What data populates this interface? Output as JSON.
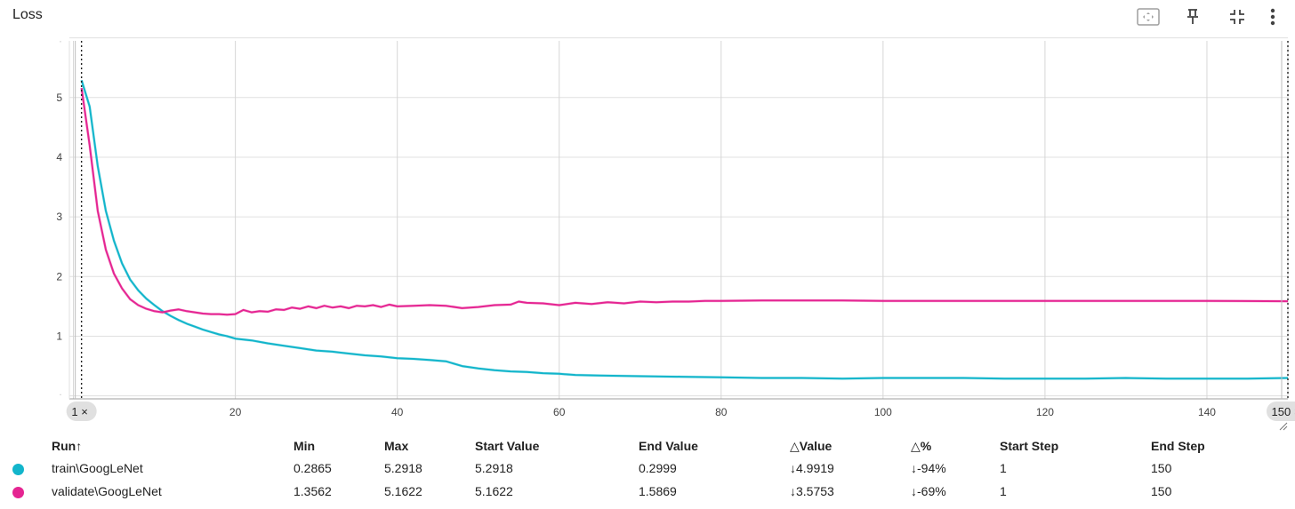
{
  "card": {
    "title": "Loss",
    "icons": [
      "fit-domain-icon",
      "pin-icon",
      "collapse-icon",
      "more-vert-icon"
    ]
  },
  "chart_data": {
    "type": "line",
    "title": "Loss",
    "xlim": [
      -0.5,
      150
    ],
    "ylim": [
      -0.05,
      5.95
    ],
    "x_ticks": [
      0,
      20,
      40,
      60,
      80,
      100,
      120,
      140
    ],
    "y_ticks": [
      0,
      1,
      2,
      3,
      4,
      5,
      6
    ],
    "y_tick_labels": [
      "",
      "1",
      "2",
      "3",
      "4",
      "5",
      ""
    ],
    "grid": true,
    "step_range": [
      1,
      150
    ],
    "range_handles": [
      "1",
      "150"
    ],
    "series": [
      {
        "name": "train\\GoogLeNet",
        "color": "#12b5cb",
        "points": [
          [
            1,
            5.29
          ],
          [
            2,
            4.85
          ],
          [
            3,
            3.85
          ],
          [
            4,
            3.1
          ],
          [
            5,
            2.6
          ],
          [
            6,
            2.22
          ],
          [
            7,
            1.95
          ],
          [
            8,
            1.77
          ],
          [
            9,
            1.63
          ],
          [
            10,
            1.52
          ],
          [
            11,
            1.42
          ],
          [
            12,
            1.34
          ],
          [
            13,
            1.27
          ],
          [
            14,
            1.21
          ],
          [
            15,
            1.16
          ],
          [
            16,
            1.11
          ],
          [
            17,
            1.07
          ],
          [
            18,
            1.03
          ],
          [
            19,
            1.0
          ],
          [
            20,
            0.96
          ],
          [
            22,
            0.93
          ],
          [
            24,
            0.88
          ],
          [
            26,
            0.84
          ],
          [
            28,
            0.8
          ],
          [
            30,
            0.76
          ],
          [
            32,
            0.74
          ],
          [
            34,
            0.71
          ],
          [
            36,
            0.68
          ],
          [
            38,
            0.66
          ],
          [
            40,
            0.63
          ],
          [
            42,
            0.62
          ],
          [
            44,
            0.6
          ],
          [
            46,
            0.58
          ],
          [
            48,
            0.5
          ],
          [
            50,
            0.46
          ],
          [
            52,
            0.43
          ],
          [
            54,
            0.41
          ],
          [
            56,
            0.4
          ],
          [
            58,
            0.38
          ],
          [
            60,
            0.37
          ],
          [
            62,
            0.35
          ],
          [
            65,
            0.34
          ],
          [
            70,
            0.33
          ],
          [
            75,
            0.32
          ],
          [
            80,
            0.31
          ],
          [
            85,
            0.3
          ],
          [
            90,
            0.3
          ],
          [
            95,
            0.29
          ],
          [
            100,
            0.3
          ],
          [
            105,
            0.3
          ],
          [
            110,
            0.3
          ],
          [
            115,
            0.29
          ],
          [
            120,
            0.29
          ],
          [
            125,
            0.29
          ],
          [
            130,
            0.3
          ],
          [
            135,
            0.29
          ],
          [
            140,
            0.29
          ],
          [
            145,
            0.29
          ],
          [
            150,
            0.2999
          ]
        ]
      },
      {
        "name": "validate\\GoogLeNet",
        "color": "#e52592",
        "points": [
          [
            1,
            5.16
          ],
          [
            2,
            4.2
          ],
          [
            3,
            3.1
          ],
          [
            4,
            2.45
          ],
          [
            5,
            2.05
          ],
          [
            6,
            1.8
          ],
          [
            7,
            1.62
          ],
          [
            8,
            1.52
          ],
          [
            9,
            1.46
          ],
          [
            10,
            1.42
          ],
          [
            11,
            1.4
          ],
          [
            12,
            1.43
          ],
          [
            13,
            1.45
          ],
          [
            14,
            1.42
          ],
          [
            15,
            1.4
          ],
          [
            16,
            1.38
          ],
          [
            17,
            1.37
          ],
          [
            18,
            1.37
          ],
          [
            19,
            1.36
          ],
          [
            20,
            1.37
          ],
          [
            21,
            1.44
          ],
          [
            22,
            1.4
          ],
          [
            23,
            1.42
          ],
          [
            24,
            1.41
          ],
          [
            25,
            1.45
          ],
          [
            26,
            1.44
          ],
          [
            27,
            1.48
          ],
          [
            28,
            1.46
          ],
          [
            29,
            1.5
          ],
          [
            30,
            1.47
          ],
          [
            31,
            1.51
          ],
          [
            32,
            1.48
          ],
          [
            33,
            1.5
          ],
          [
            34,
            1.47
          ],
          [
            35,
            1.51
          ],
          [
            36,
            1.5
          ],
          [
            37,
            1.52
          ],
          [
            38,
            1.49
          ],
          [
            39,
            1.53
          ],
          [
            40,
            1.5
          ],
          [
            42,
            1.51
          ],
          [
            44,
            1.52
          ],
          [
            46,
            1.51
          ],
          [
            48,
            1.47
          ],
          [
            50,
            1.49
          ],
          [
            52,
            1.52
          ],
          [
            54,
            1.53
          ],
          [
            55,
            1.58
          ],
          [
            56,
            1.56
          ],
          [
            58,
            1.55
          ],
          [
            60,
            1.52
          ],
          [
            62,
            1.56
          ],
          [
            64,
            1.54
          ],
          [
            66,
            1.57
          ],
          [
            68,
            1.55
          ],
          [
            70,
            1.58
          ],
          [
            72,
            1.57
          ],
          [
            74,
            1.58
          ],
          [
            76,
            1.58
          ],
          [
            78,
            1.59
          ],
          [
            80,
            1.59
          ],
          [
            85,
            1.6
          ],
          [
            90,
            1.6
          ],
          [
            95,
            1.6
          ],
          [
            100,
            1.59
          ],
          [
            110,
            1.59
          ],
          [
            120,
            1.59
          ],
          [
            130,
            1.59
          ],
          [
            140,
            1.59
          ],
          [
            150,
            1.5869
          ]
        ]
      }
    ]
  },
  "table": {
    "headers": {
      "run": "Run",
      "run_sort": "↑",
      "min": "Min",
      "max": "Max",
      "start_value": "Start Value",
      "end_value": "End Value",
      "delta_value": "△Value",
      "delta_pct": "△%",
      "start_step": "Start Step",
      "end_step": "End Step"
    },
    "rows": [
      {
        "color": "#12b5cb",
        "run": "train\\GoogLeNet",
        "min": "0.2865",
        "max": "5.2918",
        "start_value": "5.2918",
        "end_value": "0.2999",
        "delta_value": "↓4.9919",
        "delta_pct": "↓-94%",
        "start_step": "1",
        "end_step": "150"
      },
      {
        "color": "#e52592",
        "run": "validate\\GoogLeNet",
        "min": "1.3562",
        "max": "5.1622",
        "start_value": "5.1622",
        "end_value": "1.5869",
        "delta_value": "↓3.5753",
        "delta_pct": "↓-69%",
        "start_step": "1",
        "end_step": "150"
      }
    ]
  }
}
